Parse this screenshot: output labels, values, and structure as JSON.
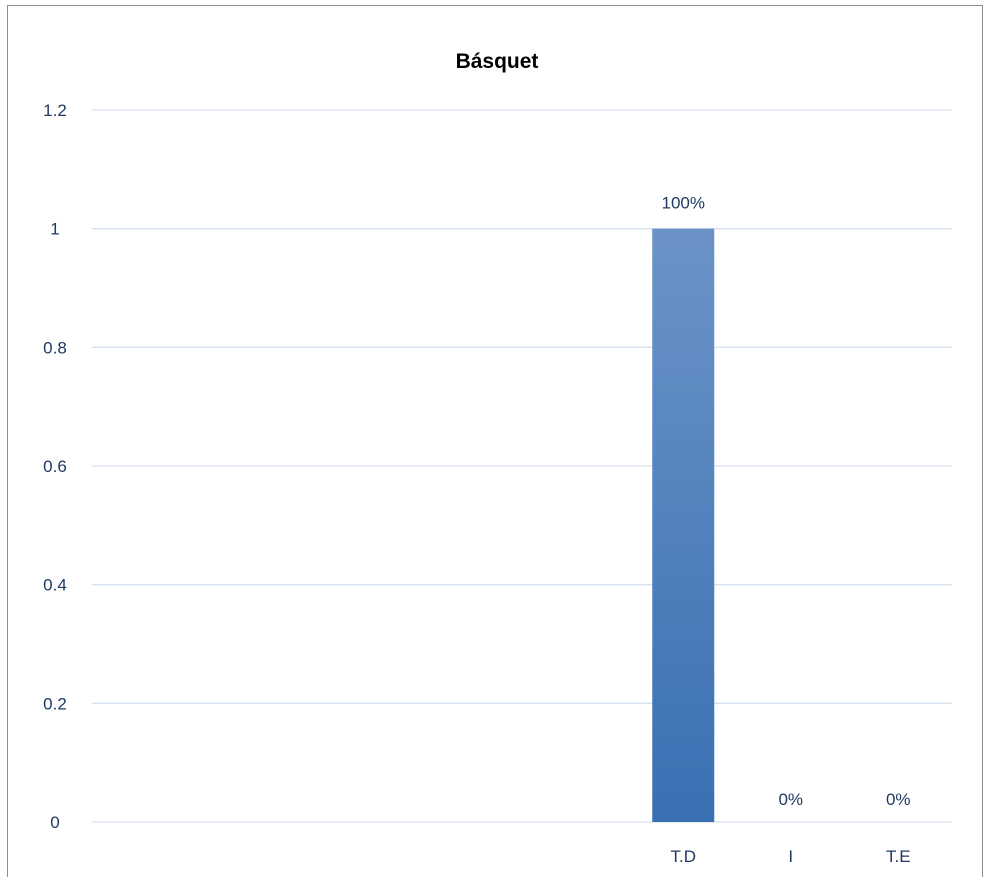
{
  "chart_data": {
    "type": "bar",
    "title": "Básquet",
    "xlabel": "",
    "ylabel": "",
    "categories": [
      "",
      "",
      "",
      "",
      "",
      "T.D",
      "I",
      "T.E"
    ],
    "values": [
      null,
      null,
      null,
      null,
      null,
      1,
      0,
      0
    ],
    "data_labels": [
      "",
      "",
      "",
      "",
      "",
      "100%",
      "0%",
      "0%"
    ],
    "ylim": [
      0,
      1.2
    ],
    "yticks": [
      "0",
      "0.2",
      "0.4",
      "0.6",
      "0.8",
      "1",
      "1.2"
    ],
    "grid": true,
    "legend": "none",
    "colors": {
      "bar_top": "#6b93c8",
      "bar_bottom": "#3a70b3",
      "grid": "#d6e1ee",
      "text": "#1f3864"
    }
  }
}
